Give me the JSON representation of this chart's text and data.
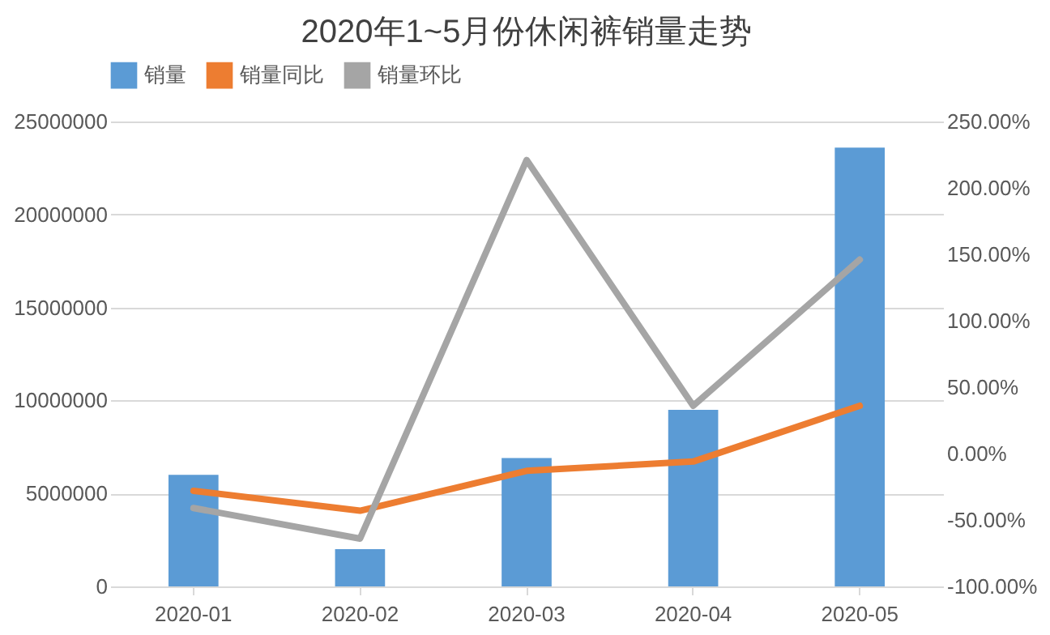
{
  "chart_data": {
    "type": "bar",
    "title": "2020年1~5月份休闲裤销量走势",
    "categories": [
      "2020-01",
      "2020-02",
      "2020-03",
      "2020-04",
      "2020-05"
    ],
    "series": [
      {
        "name": "销量",
        "color": "#5b9bd5",
        "values": [
          6000000,
          2000000,
          6900000,
          9500000,
          23600000
        ]
      },
      {
        "name": "销量同比",
        "type": "line",
        "axis": "y2",
        "color": "#ed7d31",
        "values": [
          -28,
          -43,
          -13,
          -6,
          36
        ]
      },
      {
        "name": "销量环比",
        "type": "line",
        "axis": "y2",
        "color": "#a5a5a5",
        "values": [
          -41,
          -64,
          221,
          36,
          146
        ]
      }
    ],
    "ylim": [
      0,
      25000000
    ],
    "yticks": [
      0,
      5000000,
      10000000,
      15000000,
      20000000,
      25000000
    ],
    "y2lim": [
      -100,
      250
    ],
    "y2ticks": [
      {
        "value": -100,
        "label": "-100.00%"
      },
      {
        "value": -50,
        "label": "-50.00%"
      },
      {
        "value": 0,
        "label": "0.00%"
      },
      {
        "value": 50,
        "label": "50.00%"
      },
      {
        "value": 100,
        "label": "100.00%"
      },
      {
        "value": 150,
        "label": "150.00%"
      },
      {
        "value": 200,
        "label": "200.00%"
      },
      {
        "value": 250,
        "label": "250.00%"
      }
    ],
    "grid": "y",
    "legend": "top",
    "marker": "none",
    "line_style": "solid"
  }
}
